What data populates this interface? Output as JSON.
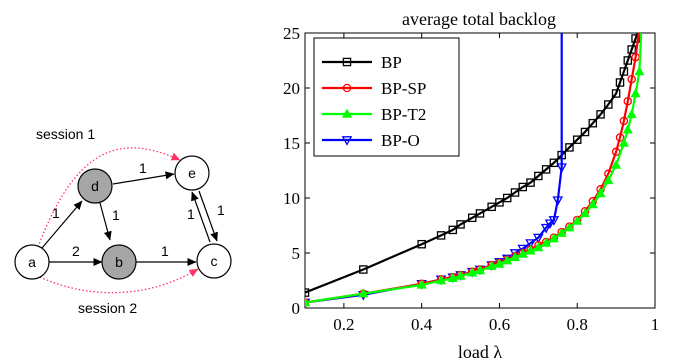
{
  "diagram": {
    "nodes": [
      {
        "id": "a",
        "label": "a",
        "fill": "#ffffff"
      },
      {
        "id": "d",
        "label": "d",
        "fill": "#a6a6a6"
      },
      {
        "id": "b",
        "label": "b",
        "fill": "#a6a6a6"
      },
      {
        "id": "e",
        "label": "e",
        "fill": "#ffffff"
      },
      {
        "id": "c",
        "label": "c",
        "fill": "#ffffff"
      }
    ],
    "edge_labels": {
      "a_d": "1",
      "a_b": "2",
      "d_b": "1",
      "d_e": "1",
      "b_c": "1",
      "c_e": "1",
      "e_c": "1"
    },
    "sessions": [
      "session 1",
      "session 2"
    ],
    "session_color": "#ff3366"
  },
  "chart_data": {
    "type": "line",
    "title": "average total backlog",
    "xlabel": "load λ",
    "ylabel": "",
    "xlim": [
      0.1,
      1.0
    ],
    "ylim": [
      0,
      25
    ],
    "xticks": [
      "0.2",
      "0.4",
      "0.6",
      "0.8",
      "1"
    ],
    "yticks": [
      "0",
      "5",
      "10",
      "15",
      "20",
      "25"
    ],
    "legend_position": "top-left",
    "series": [
      {
        "name": "BP",
        "color": "#000000",
        "marker": "square",
        "x": [
          0.1,
          0.25,
          0.4,
          0.45,
          0.48,
          0.5,
          0.53,
          0.55,
          0.58,
          0.6,
          0.62,
          0.64,
          0.66,
          0.68,
          0.7,
          0.72,
          0.74,
          0.76,
          0.78,
          0.8,
          0.82,
          0.84,
          0.86,
          0.88,
          0.9,
          0.91,
          0.92,
          0.93,
          0.94,
          0.95,
          0.96
        ],
        "y": [
          1.4,
          3.5,
          5.8,
          6.6,
          7.1,
          7.6,
          8.2,
          8.6,
          9.2,
          9.6,
          10.0,
          10.5,
          11.0,
          11.4,
          12.0,
          12.6,
          13.2,
          13.9,
          14.6,
          15.3,
          16.0,
          16.8,
          17.6,
          18.5,
          19.5,
          20.5,
          21.5,
          22.5,
          23.5,
          24.5,
          25.5
        ]
      },
      {
        "name": "BP-SP",
        "color": "#ff0000",
        "marker": "circle",
        "x": [
          0.1,
          0.25,
          0.4,
          0.45,
          0.48,
          0.5,
          0.53,
          0.55,
          0.58,
          0.6,
          0.62,
          0.64,
          0.66,
          0.68,
          0.7,
          0.72,
          0.74,
          0.76,
          0.78,
          0.8,
          0.82,
          0.84,
          0.86,
          0.88,
          0.9,
          0.91,
          0.92,
          0.93,
          0.94,
          0.95,
          0.96
        ],
        "y": [
          0.5,
          1.3,
          2.2,
          2.6,
          2.8,
          3.0,
          3.3,
          3.5,
          3.9,
          4.1,
          4.4,
          4.7,
          5.0,
          5.3,
          5.7,
          6.0,
          6.4,
          6.9,
          7.4,
          8.0,
          8.8,
          9.7,
          10.8,
          12.2,
          14.2,
          15.5,
          17.0,
          18.8,
          20.8,
          22.8,
          25.5
        ]
      },
      {
        "name": "BP-T2",
        "color": "#00ff00",
        "marker": "triangle-up",
        "x": [
          0.1,
          0.25,
          0.4,
          0.45,
          0.48,
          0.5,
          0.53,
          0.55,
          0.58,
          0.6,
          0.62,
          0.64,
          0.66,
          0.68,
          0.7,
          0.72,
          0.74,
          0.76,
          0.78,
          0.8,
          0.82,
          0.84,
          0.86,
          0.88,
          0.9,
          0.92,
          0.93,
          0.94,
          0.95,
          0.96,
          0.965
        ],
        "y": [
          0.5,
          1.3,
          2.1,
          2.5,
          2.7,
          2.9,
          3.2,
          3.4,
          3.8,
          4.0,
          4.3,
          4.6,
          4.9,
          5.2,
          5.5,
          5.9,
          6.3,
          6.8,
          7.3,
          7.9,
          8.6,
          9.4,
          10.4,
          11.6,
          13.0,
          15.0,
          16.2,
          17.6,
          19.5,
          21.5,
          25.5
        ]
      },
      {
        "name": "BP-O",
        "color": "#0000ff",
        "marker": "triangle-down",
        "x": [
          0.1,
          0.25,
          0.4,
          0.45,
          0.48,
          0.5,
          0.53,
          0.55,
          0.58,
          0.6,
          0.62,
          0.64,
          0.66,
          0.68,
          0.7,
          0.72,
          0.73,
          0.74,
          0.75,
          0.76,
          0.76
        ],
        "y": [
          0.5,
          1.2,
          2.2,
          2.6,
          2.8,
          3.0,
          3.3,
          3.5,
          3.9,
          4.2,
          4.5,
          5.0,
          5.4,
          5.9,
          6.4,
          7.3,
          7.7,
          8.0,
          9.8,
          12.8,
          25.5
        ]
      }
    ]
  }
}
